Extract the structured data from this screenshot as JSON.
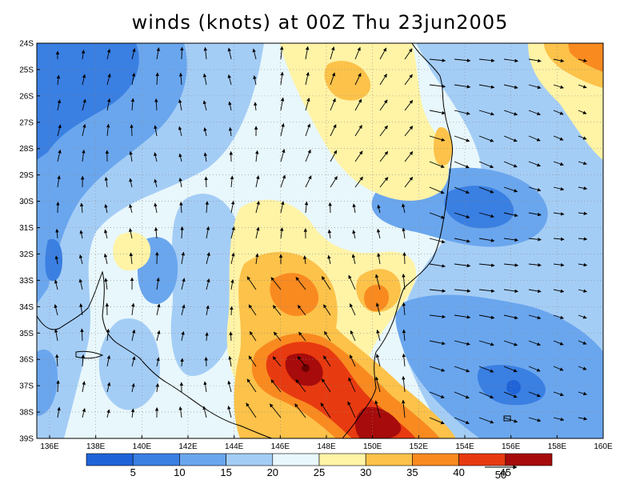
{
  "title": "winds (knots) at 00Z Thu 23jun2005",
  "axes": {
    "lat_labels": [
      "24S",
      "25S",
      "26S",
      "27S",
      "28S",
      "29S",
      "30S",
      "31S",
      "32S",
      "33S",
      "34S",
      "35S",
      "36S",
      "37S",
      "38S",
      "39S"
    ],
    "lon_labels": [
      "136E",
      "138E",
      "140E",
      "142E",
      "144E",
      "146E",
      "148E",
      "150E",
      "152E",
      "154E",
      "156E",
      "158E",
      "160E"
    ],
    "grid": "dotted"
  },
  "colorbar": {
    "levels": [
      "5",
      "10",
      "15",
      "20",
      "25",
      "30",
      "35",
      "40",
      "45"
    ],
    "colors": [
      "#1f63d8",
      "#3a7fe2",
      "#6aa6ee",
      "#a4cdf6",
      "#e8f7fb",
      "#fff3a6",
      "#fcc24a",
      "#f98a20",
      "#e83a10",
      "#a70b0b"
    ],
    "vector_scale_label": "50"
  }
}
